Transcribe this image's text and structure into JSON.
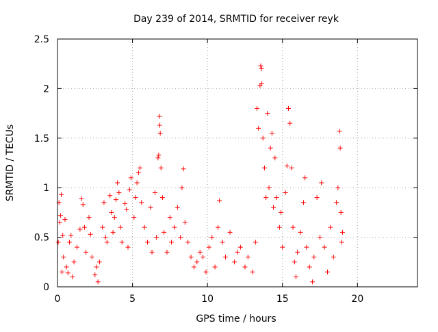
{
  "chart_data": {
    "type": "scatter",
    "title": "Day 239 of 2014, SRMTID for receiver reyk",
    "xlabel": "GPS time / hours",
    "ylabel": "SRMTID / TECUs",
    "xlim": [
      0,
      24
    ],
    "ylim": [
      0,
      2.5
    ],
    "xticks": [
      0,
      5,
      10,
      15,
      20
    ],
    "yticks": [
      0,
      0.5,
      1,
      1.5,
      2,
      2.5
    ],
    "xtick_labels": [
      "0",
      "5",
      "10",
      "15",
      "20"
    ],
    "ytick_labels": [
      "0",
      "0.5",
      "1",
      "1.5",
      "2",
      "2.5"
    ],
    "grid": true,
    "marker": "+",
    "series": [
      {
        "name": "SRMTID",
        "color": "#ff0000",
        "points": [
          [
            0.05,
            0.45
          ],
          [
            0.1,
            0.85
          ],
          [
            0.15,
            0.65
          ],
          [
            0.2,
            0.72
          ],
          [
            0.25,
            0.93
          ],
          [
            0.3,
            0.15
          ],
          [
            0.35,
            0.52
          ],
          [
            0.4,
            0.3
          ],
          [
            0.5,
            0.68
          ],
          [
            0.6,
            0.2
          ],
          [
            0.7,
            0.14
          ],
          [
            0.8,
            0.45
          ],
          [
            0.9,
            0.52
          ],
          [
            1.0,
            0.1
          ],
          [
            1.1,
            0.25
          ],
          [
            1.3,
            0.4
          ],
          [
            1.5,
            0.58
          ],
          [
            1.6,
            0.89
          ],
          [
            1.7,
            0.83
          ],
          [
            1.8,
            0.6
          ],
          [
            1.9,
            0.35
          ],
          [
            2.1,
            0.7
          ],
          [
            2.2,
            0.53
          ],
          [
            2.3,
            0.3
          ],
          [
            2.5,
            0.12
          ],
          [
            2.6,
            0.2
          ],
          [
            2.7,
            0.05
          ],
          [
            2.8,
            0.25
          ],
          [
            3.0,
            0.6
          ],
          [
            3.1,
            0.85
          ],
          [
            3.2,
            0.5
          ],
          [
            3.3,
            0.45
          ],
          [
            3.5,
            0.92
          ],
          [
            3.6,
            0.75
          ],
          [
            3.7,
            0.55
          ],
          [
            3.8,
            0.7
          ],
          [
            3.9,
            0.88
          ],
          [
            4.0,
            1.05
          ],
          [
            4.1,
            0.95
          ],
          [
            4.2,
            0.6
          ],
          [
            4.3,
            0.45
          ],
          [
            4.5,
            0.84
          ],
          [
            4.6,
            0.78
          ],
          [
            4.7,
            0.4
          ],
          [
            4.8,
            0.98
          ],
          [
            4.9,
            1.1
          ],
          [
            5.1,
            0.7
          ],
          [
            5.2,
            0.9
          ],
          [
            5.3,
            1.05
          ],
          [
            5.4,
            1.15
          ],
          [
            5.5,
            1.2
          ],
          [
            5.6,
            0.85
          ],
          [
            5.8,
            0.6
          ],
          [
            6.0,
            0.45
          ],
          [
            6.2,
            0.8
          ],
          [
            6.3,
            0.35
          ],
          [
            6.5,
            0.95
          ],
          [
            6.6,
            0.5
          ],
          [
            6.7,
            1.3
          ],
          [
            6.75,
            1.33
          ],
          [
            6.8,
            1.72
          ],
          [
            6.82,
            1.63
          ],
          [
            6.85,
            1.55
          ],
          [
            6.9,
            1.2
          ],
          [
            7.0,
            0.9
          ],
          [
            7.1,
            0.55
          ],
          [
            7.3,
            0.35
          ],
          [
            7.5,
            0.7
          ],
          [
            7.6,
            0.45
          ],
          [
            7.8,
            0.6
          ],
          [
            8.0,
            0.8
          ],
          [
            8.2,
            0.5
          ],
          [
            8.3,
            1.0
          ],
          [
            8.4,
            1.19
          ],
          [
            8.5,
            0.65
          ],
          [
            8.7,
            0.45
          ],
          [
            8.9,
            0.3
          ],
          [
            9.1,
            0.2
          ],
          [
            9.3,
            0.25
          ],
          [
            9.5,
            0.35
          ],
          [
            9.7,
            0.3
          ],
          [
            9.9,
            0.15
          ],
          [
            10.1,
            0.4
          ],
          [
            10.3,
            0.5
          ],
          [
            10.5,
            0.2
          ],
          [
            10.7,
            0.6
          ],
          [
            10.8,
            0.87
          ],
          [
            11.0,
            0.45
          ],
          [
            11.2,
            0.3
          ],
          [
            11.5,
            0.55
          ],
          [
            11.8,
            0.25
          ],
          [
            12.0,
            0.35
          ],
          [
            12.2,
            0.4
          ],
          [
            12.5,
            0.2
          ],
          [
            12.7,
            0.3
          ],
          [
            13.0,
            0.15
          ],
          [
            13.2,
            0.45
          ],
          [
            13.3,
            1.8
          ],
          [
            13.4,
            1.6
          ],
          [
            13.5,
            2.03
          ],
          [
            13.55,
            2.23
          ],
          [
            13.6,
            2.2
          ],
          [
            13.62,
            2.05
          ],
          [
            13.7,
            1.5
          ],
          [
            13.8,
            1.2
          ],
          [
            13.9,
            0.9
          ],
          [
            14.0,
            1.75
          ],
          [
            14.1,
            1.0
          ],
          [
            14.2,
            1.4
          ],
          [
            14.3,
            1.55
          ],
          [
            14.4,
            0.8
          ],
          [
            14.5,
            1.3
          ],
          [
            14.6,
            0.9
          ],
          [
            14.8,
            0.6
          ],
          [
            14.9,
            0.75
          ],
          [
            15.0,
            0.4
          ],
          [
            15.2,
            0.95
          ],
          [
            15.3,
            1.22
          ],
          [
            15.4,
            1.8
          ],
          [
            15.5,
            1.65
          ],
          [
            15.6,
            1.2
          ],
          [
            15.7,
            0.6
          ],
          [
            15.8,
            0.25
          ],
          [
            15.9,
            0.1
          ],
          [
            16.0,
            0.35
          ],
          [
            16.2,
            0.55
          ],
          [
            16.4,
            0.85
          ],
          [
            16.5,
            1.1
          ],
          [
            16.6,
            0.4
          ],
          [
            16.8,
            0.2
          ],
          [
            17.0,
            0.05
          ],
          [
            17.1,
            0.3
          ],
          [
            17.3,
            0.9
          ],
          [
            17.5,
            0.5
          ],
          [
            17.6,
            1.05
          ],
          [
            17.8,
            0.4
          ],
          [
            18.0,
            0.15
          ],
          [
            18.2,
            0.6
          ],
          [
            18.4,
            0.3
          ],
          [
            18.6,
            0.85
          ],
          [
            18.7,
            1.0
          ],
          [
            18.8,
            1.57
          ],
          [
            18.85,
            1.4
          ],
          [
            18.9,
            0.75
          ],
          [
            18.95,
            0.45
          ],
          [
            19.0,
            0.55
          ]
        ]
      }
    ]
  }
}
